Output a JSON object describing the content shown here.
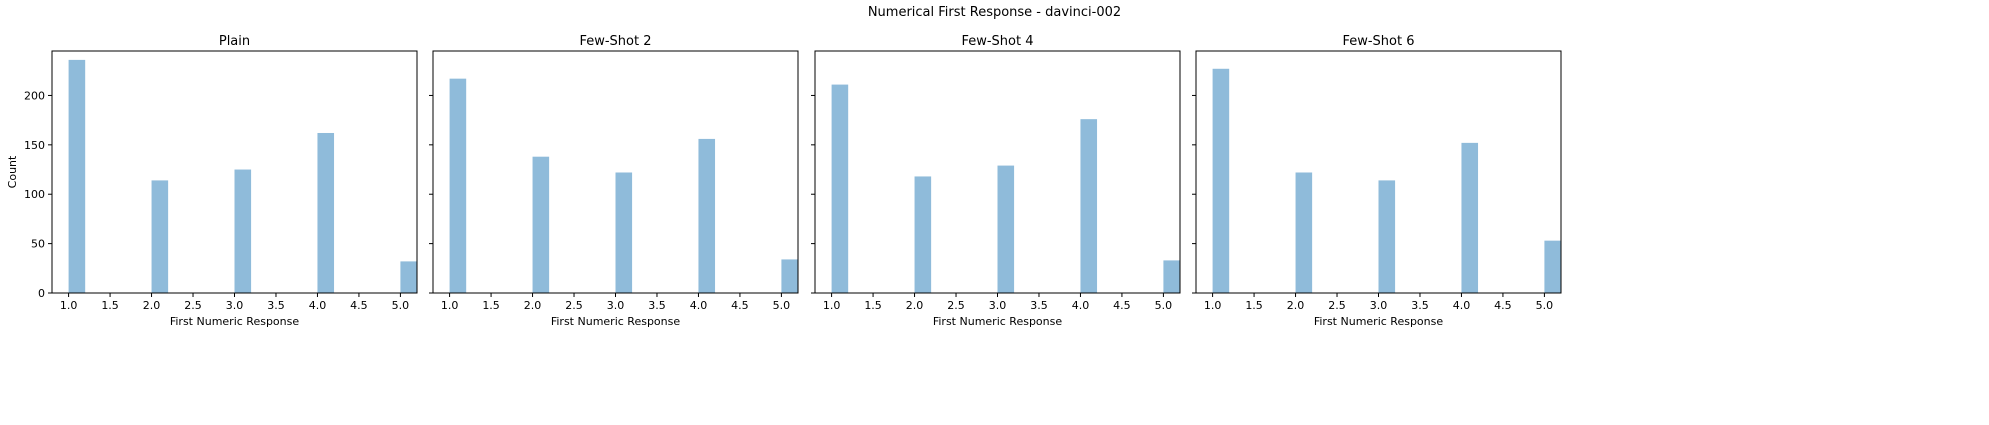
{
  "figure_title": "Numerical First Response - davinci-002",
  "colors": {
    "bar": "#8fbbda",
    "axis": "#000000"
  },
  "chart_data": {
    "type": "bar",
    "title": "Numerical First Response - davinci-002",
    "xlabel": "First Numeric Response",
    "ylabel": "Count",
    "xlim": [
      0.8,
      5.2
    ],
    "ylim": [
      0,
      245
    ],
    "bin_width": 0.2,
    "sharey": true,
    "xticks": [
      "1.0",
      "1.5",
      "2.0",
      "2.5",
      "3.0",
      "3.5",
      "4.0",
      "4.5",
      "5.0"
    ],
    "yticks": [
      "0",
      "50",
      "100",
      "150",
      "200"
    ],
    "panels": [
      {
        "title": "Plain",
        "x": [
          1,
          2,
          3,
          4,
          5
        ],
        "values": [
          236,
          114,
          125,
          162,
          32
        ]
      },
      {
        "title": "Few-Shot 2",
        "x": [
          1,
          2,
          3,
          4,
          5
        ],
        "values": [
          217,
          138,
          122,
          156,
          34
        ]
      },
      {
        "title": "Few-Shot 4",
        "x": [
          1,
          2,
          3,
          4,
          5
        ],
        "values": [
          211,
          118,
          129,
          176,
          33
        ]
      },
      {
        "title": "Few-Shot 6",
        "x": [
          1,
          2,
          3,
          4,
          5
        ],
        "values": [
          227,
          122,
          114,
          152,
          53
        ]
      }
    ]
  }
}
